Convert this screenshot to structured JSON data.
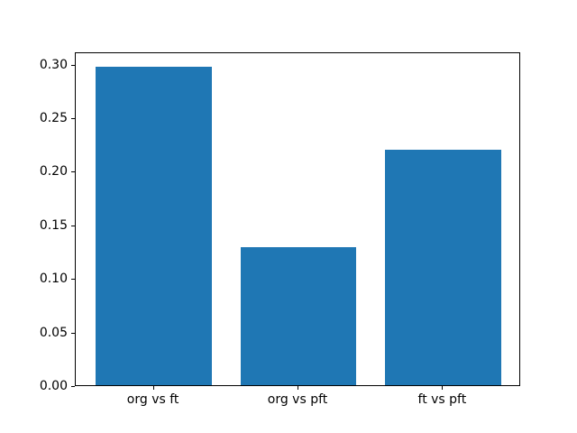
{
  "figure": {
    "background": "#ffffff"
  },
  "chart_data": {
    "type": "bar",
    "title": "",
    "xlabel": "",
    "ylabel": "",
    "categories": [
      "org vs ft",
      "org vs pft",
      "ft vs pft"
    ],
    "values": [
      0.297,
      0.129,
      0.22
    ],
    "bar_color": "#1f77b4",
    "bar_width_fraction": 0.8,
    "xlim": [
      -0.54,
      2.54
    ],
    "ylim": [
      0,
      0.3114
    ],
    "yticks": [
      0.0,
      0.05,
      0.1,
      0.15,
      0.2,
      0.25,
      0.3
    ],
    "ytick_labels": [
      "0.00",
      "0.05",
      "0.10",
      "0.15",
      "0.20",
      "0.25",
      "0.30"
    ],
    "grid": false,
    "legend_position": "none",
    "axis_color": "#000000",
    "text_color": "#000000"
  }
}
